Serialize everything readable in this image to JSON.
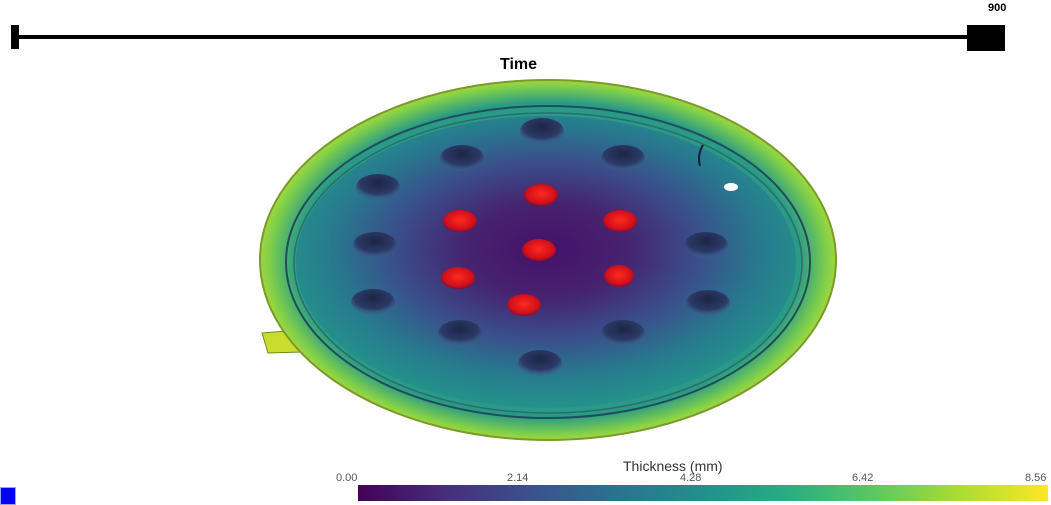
{
  "slider": {
    "max_label": "900",
    "value_fraction": 1.0
  },
  "plot": {
    "title": "Time"
  },
  "colorbar": {
    "title": "Thickness (mm)",
    "ticks": [
      "0.00",
      "2.14",
      "4.28",
      "6.42",
      "8.56"
    ],
    "colormap": "viridis"
  },
  "colors": {
    "accent": "#0000ff",
    "hot_spot": "#e01010"
  }
}
